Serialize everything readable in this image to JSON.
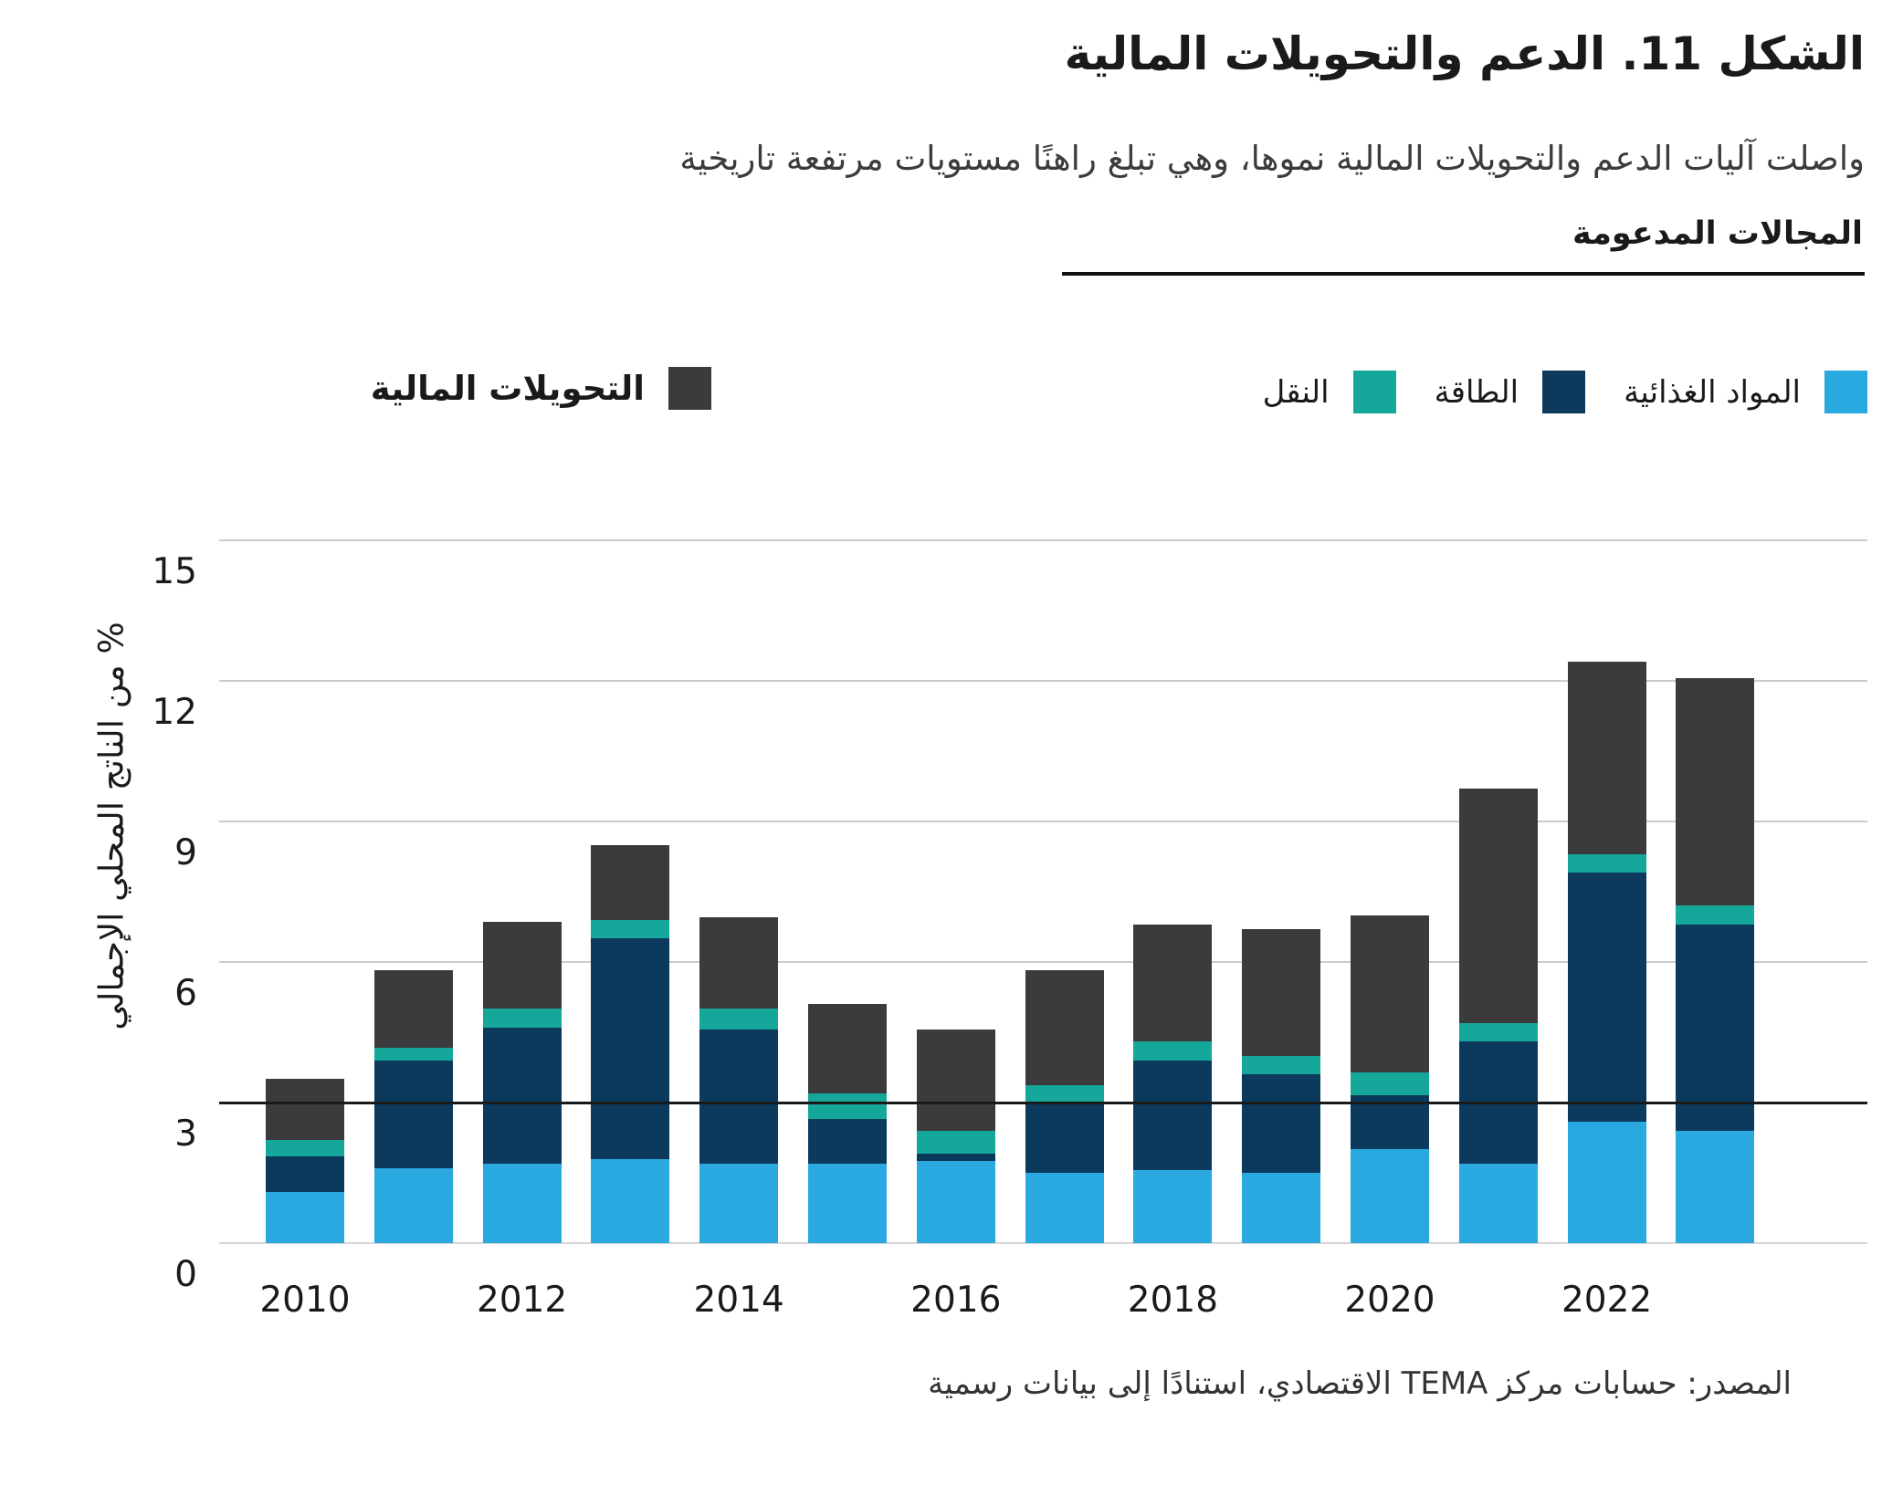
{
  "title": "الشكل 11. الدعم والتحويلات المالية",
  "subtitle": "واصلت آليات الدعم والتحويلات المالية نموها، وهي تبلغ راهنًا مستويات مرتفعة تاريخية",
  "legend": {
    "group_title": "المجالات المدعومة"
  },
  "source": "المصدر: حسابات مركز TEMA الاقتصادي، استنادًا إلى بيانات رسمية",
  "colors": {
    "food": "#29A9E0",
    "energy": "#0B3A5D",
    "transport": "#15A79A",
    "transfers": "#3B3B3D",
    "grid": "#CCCCCC",
    "reference_line": "#1A1A1A"
  },
  "chart_data": {
    "type": "bar",
    "stacked": true,
    "title": "الشكل 11. الدعم والتحويلات المالية",
    "ylabel": "% من الناتج المحلي الإجمالي",
    "xlabel": "",
    "ylim": [
      0,
      15
    ],
    "yticks": [
      0,
      3,
      6,
      9,
      12,
      15
    ],
    "reference_line_y": 3,
    "grid": "horizontal",
    "legend_position": "top",
    "categories": [
      "2010",
      "2011",
      "2012",
      "2013",
      "2014",
      "2015",
      "2016",
      "2017",
      "2018",
      "2019",
      "2020",
      "2021",
      "2022",
      "2023"
    ],
    "x_tick_labels": [
      "2010",
      "2012",
      "2014",
      "2016",
      "2018",
      "2020",
      "2022"
    ],
    "series": [
      {
        "key": "food",
        "name": "المواد الغذائية",
        "color": "#29A9E0",
        "values": [
          1.1,
          1.6,
          1.7,
          1.8,
          1.7,
          1.7,
          1.75,
          1.5,
          1.55,
          1.5,
          2.0,
          1.7,
          2.6,
          2.4
        ]
      },
      {
        "key": "energy",
        "name": "الطاقة",
        "color": "#0B3A5D",
        "values": [
          0.75,
          2.3,
          2.9,
          4.7,
          2.85,
          0.95,
          0.15,
          1.5,
          2.35,
          2.1,
          1.15,
          2.6,
          5.3,
          4.4
        ]
      },
      {
        "key": "transport",
        "name": "النقل",
        "color": "#15A79A",
        "values": [
          0.35,
          0.27,
          0.4,
          0.4,
          0.45,
          0.55,
          0.5,
          0.37,
          0.4,
          0.4,
          0.5,
          0.4,
          0.4,
          0.4
        ]
      },
      {
        "key": "transfers",
        "name": "التحويلات المالية",
        "color": "#3B3B3D",
        "values": [
          1.3,
          1.65,
          1.85,
          1.6,
          1.95,
          1.9,
          2.15,
          2.45,
          2.5,
          2.7,
          3.35,
          5.0,
          4.1,
          4.85
        ]
      }
    ],
    "totals": [
      3.5,
      5.82,
      6.85,
      8.5,
      6.95,
      5.1,
      4.55,
      5.82,
      6.8,
      6.7,
      7.0,
      9.7,
      12.4,
      12.05
    ]
  }
}
